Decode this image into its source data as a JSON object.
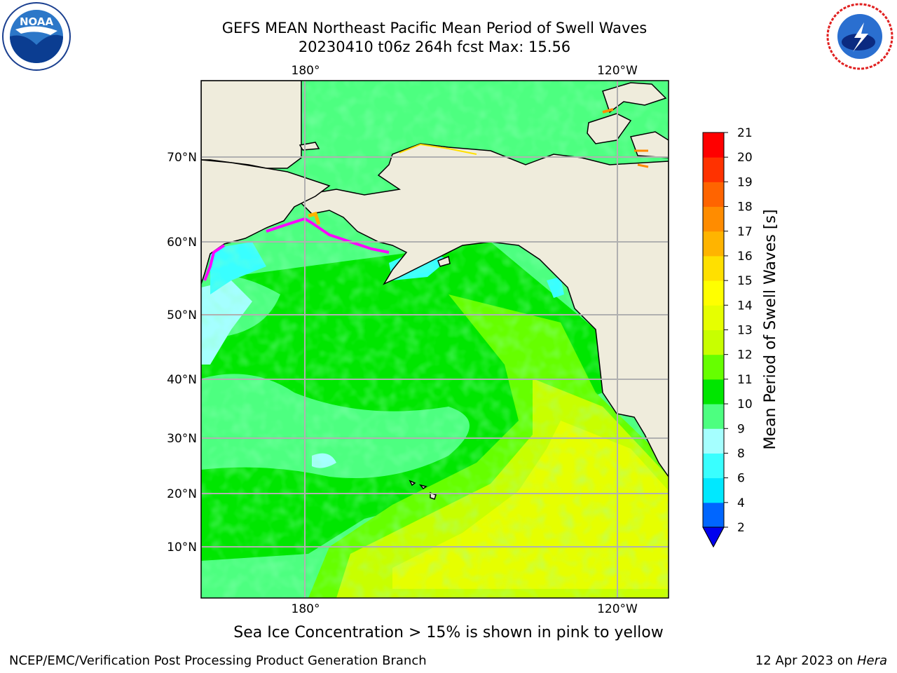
{
  "header": {
    "title_line1": "GEFS MEAN Northeast Pacific Mean Period of Swell Waves",
    "title_line2": "20230410 t06z 264h fcst   Max: 15.56"
  },
  "logos": {
    "left": {
      "name": "NOAA",
      "text": "NOAA"
    },
    "right": {
      "name": "National Weather Service"
    }
  },
  "map": {
    "top_lon_labels": [
      "180°",
      "120°W"
    ],
    "bottom_lon_labels": [
      "180°",
      "120°W"
    ],
    "lat_labels": [
      "70°N",
      "60°N",
      "50°N",
      "40°N",
      "30°N",
      "20°N",
      "10°N"
    ]
  },
  "colorbar": {
    "label": "Mean Period of Swell Waves [s]",
    "ticks": [
      "2",
      "4",
      "6",
      "8",
      "9",
      "10",
      "11",
      "12",
      "13",
      "14",
      "15",
      "16",
      "17",
      "18",
      "19",
      "20",
      "21"
    ],
    "colors": [
      "#0066ff",
      "#00e8ff",
      "#39ffff",
      "#a5ffff",
      "#4dff80",
      "#00e600",
      "#66ff00",
      "#c8ff00",
      "#e6ff00",
      "#ffff00",
      "#ffe000",
      "#ffb400",
      "#ff8c00",
      "#ff6400",
      "#ff3200",
      "#ff0000"
    ],
    "extend_color": "#0000ee",
    "land_color": "#efecdc",
    "ice_color": "#ff00ff"
  },
  "caption": "Sea Ice Concentration > 15% is shown in pink to yellow",
  "footer": {
    "left": "NCEP/EMC/Verification Post Processing Product Generation Branch",
    "right_prefix": "12 Apr 2023 on ",
    "right_machine": "Hera"
  }
}
